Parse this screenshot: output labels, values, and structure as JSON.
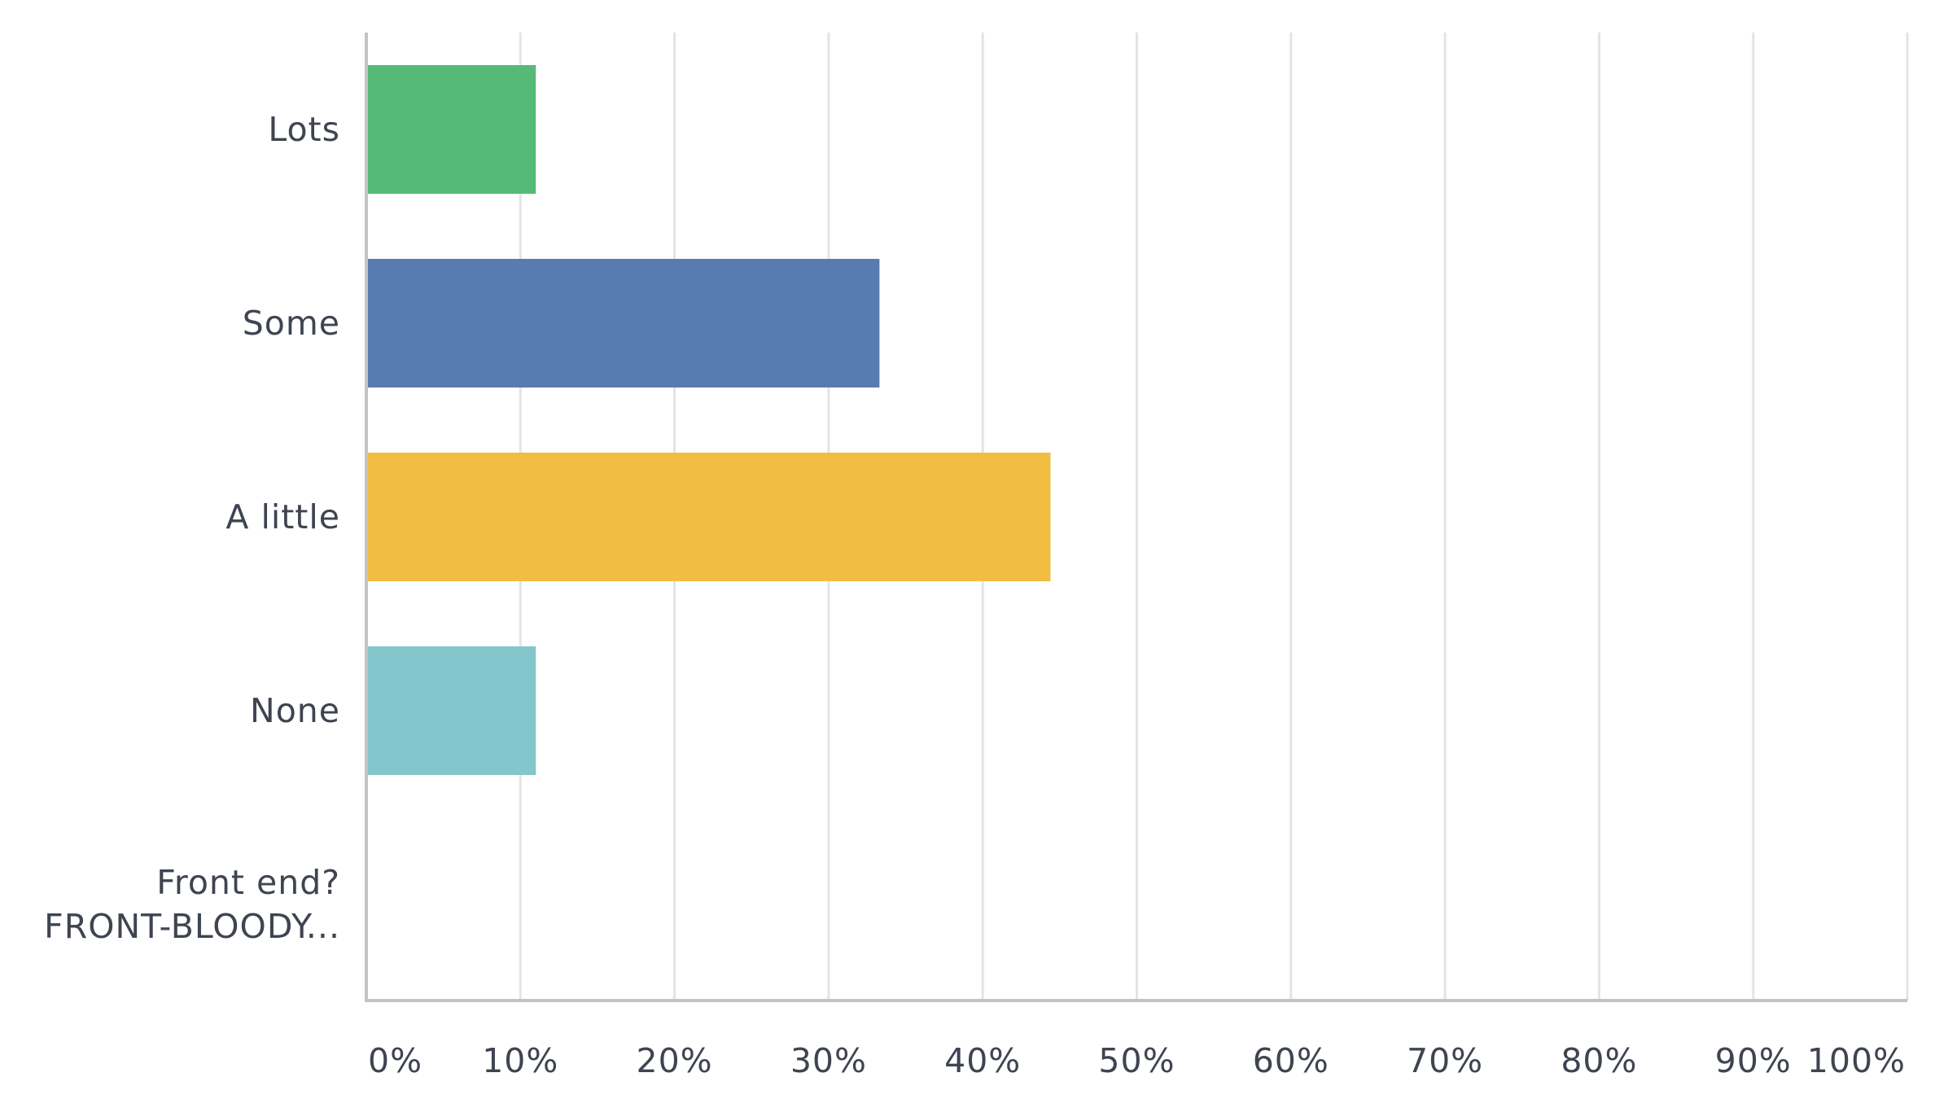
{
  "chart_data": {
    "type": "bar",
    "orientation": "horizontal",
    "categories": [
      {
        "lines": [
          "Lots"
        ]
      },
      {
        "lines": [
          "Some"
        ]
      },
      {
        "lines": [
          "A little"
        ]
      },
      {
        "lines": [
          "None"
        ]
      },
      {
        "lines": [
          "Front end?",
          "FRONT-BLOODY..."
        ]
      }
    ],
    "values": [
      11,
      33.3,
      44.4,
      11,
      0
    ],
    "colors": [
      "#55b978",
      "#587bb0",
      "#f1bd42",
      "#83c6cc",
      "#cccccc"
    ],
    "x_ticks": [
      "0%",
      "10%",
      "20%",
      "30%",
      "40%",
      "50%",
      "60%",
      "70%",
      "80%",
      "90%",
      "100%"
    ],
    "xlim": [
      0,
      100
    ],
    "xlabel": "",
    "ylabel": "",
    "grid": true,
    "legend": false
  }
}
